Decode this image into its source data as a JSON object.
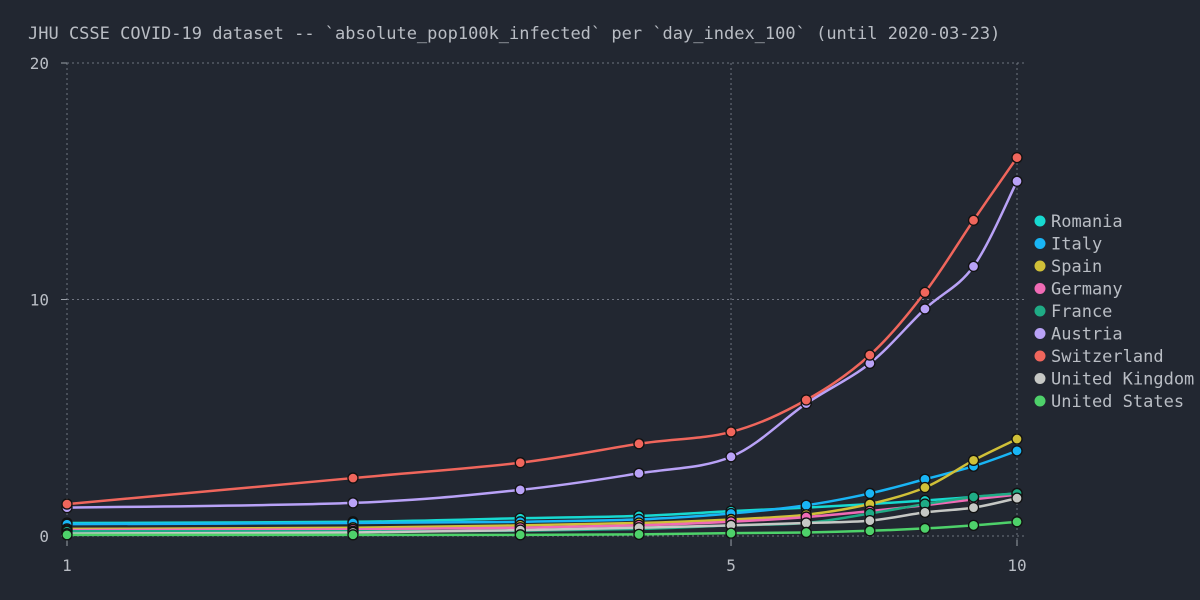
{
  "chart_data": {
    "type": "line",
    "title": "JHU CSSE COVID-19 dataset -- `absolute_pop100k_infected` per `day_index_100` (until 2020-03-23)",
    "xlabel": "",
    "ylabel": "",
    "x_scale": "log",
    "xlim": [
      1,
      10
    ],
    "ylim": [
      0,
      20
    ],
    "x_ticks": [
      1,
      5,
      10
    ],
    "y_ticks": [
      0,
      10,
      20
    ],
    "grid": true,
    "legend_position": "right",
    "x": [
      1,
      2,
      3,
      4,
      5,
      6,
      7,
      8,
      9,
      10
    ],
    "series": [
      {
        "name": "Romania",
        "color": "#17d9d0",
        "values": [
          0.55,
          0.6,
          0.75,
          0.85,
          1.05,
          1.2,
          1.35,
          1.5,
          1.65,
          1.8
        ]
      },
      {
        "name": "Italy",
        "color": "#19b5f5",
        "values": [
          0.5,
          0.55,
          0.6,
          0.7,
          0.95,
          1.3,
          1.8,
          2.4,
          2.95,
          3.6
        ]
      },
      {
        "name": "Spain",
        "color": "#d0c038",
        "values": [
          0.3,
          0.35,
          0.45,
          0.55,
          0.7,
          0.9,
          1.35,
          2.05,
          3.2,
          4.1
        ]
      },
      {
        "name": "Germany",
        "color": "#f06bb5",
        "values": [
          0.25,
          0.28,
          0.35,
          0.45,
          0.6,
          0.8,
          1.05,
          1.3,
          1.55,
          1.75
        ]
      },
      {
        "name": "France",
        "color": "#1fab85",
        "values": [
          0.2,
          0.2,
          0.22,
          0.3,
          0.45,
          0.55,
          0.95,
          1.35,
          1.65,
          1.8
        ]
      },
      {
        "name": "Austria",
        "color": "#b9a2f7",
        "values": [
          1.2,
          1.4,
          1.95,
          2.65,
          3.35,
          5.6,
          7.3,
          9.6,
          11.4,
          15.0
        ]
      },
      {
        "name": "Switzerland",
        "color": "#f0665c",
        "values": [
          1.35,
          2.45,
          3.1,
          3.9,
          4.4,
          5.75,
          7.65,
          10.3,
          13.35,
          16.0
        ]
      },
      {
        "name": "United Kingdom",
        "color": "#c6c8c5",
        "values": [
          0.1,
          0.15,
          0.25,
          0.35,
          0.45,
          0.55,
          0.65,
          1.0,
          1.2,
          1.6
        ]
      },
      {
        "name": "United States",
        "color": "#4ed16a",
        "values": [
          0.05,
          0.05,
          0.05,
          0.07,
          0.12,
          0.15,
          0.22,
          0.32,
          0.45,
          0.6
        ]
      }
    ]
  }
}
